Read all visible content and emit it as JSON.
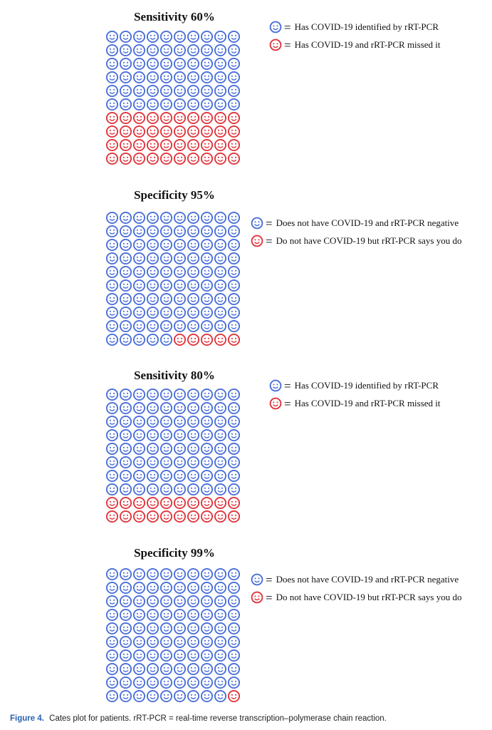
{
  "colors": {
    "blue": "#4a6fd8",
    "red": "#e0353c"
  },
  "chart_data": [
    {
      "type": "icon-array",
      "title": "Sensitivity 60%",
      "rows": 10,
      "cols": 10,
      "total": 100,
      "categories": [
        "Has COVID-19 identified by rRT-PCR",
        "Has COVID-19 and rRT-PCR missed it"
      ],
      "values": [
        60,
        40
      ],
      "icon_colors": [
        "blue",
        "red"
      ],
      "legend": [
        {
          "color": "blue",
          "symbol": "=",
          "text": "Has COVID-19 identified by rRT-PCR"
        },
        {
          "color": "red",
          "symbol": "=",
          "text": "Has COVID-19 and rRT-PCR missed it"
        }
      ]
    },
    {
      "type": "icon-array",
      "title": "Specificity 95%",
      "rows": 10,
      "cols": 10,
      "total": 100,
      "categories": [
        "Does not have COVID-19 and rRT-PCR negative",
        "Do not have COVID-19 but rRT-PCR says you do"
      ],
      "values": [
        95,
        5
      ],
      "icon_colors": [
        "blue",
        "red"
      ],
      "legend": [
        {
          "color": "blue",
          "symbol": "=",
          "text": "Does not have COVID-19 and rRT-PCR negative"
        },
        {
          "color": "red",
          "symbol": "=",
          "text": "Do not have COVID-19 but rRT-PCR says you do"
        }
      ]
    },
    {
      "type": "icon-array",
      "title": "Sensitivity 80%",
      "rows": 10,
      "cols": 10,
      "total": 100,
      "categories": [
        "Has COVID-19 identified by rRT-PCR",
        "Has COVID-19 and rRT-PCR missed it"
      ],
      "values": [
        80,
        20
      ],
      "icon_colors": [
        "blue",
        "red"
      ],
      "legend": [
        {
          "color": "blue",
          "symbol": "=",
          "text": "Has COVID-19 identified by rRT-PCR"
        },
        {
          "color": "red",
          "symbol": "=",
          "text": "Has COVID-19 and rRT-PCR missed it"
        }
      ]
    },
    {
      "type": "icon-array",
      "title": "Specificity 99%",
      "rows": 10,
      "cols": 10,
      "total": 100,
      "categories": [
        "Does not have COVID-19 and rRT-PCR negative",
        "Do not have COVID-19 but rRT-PCR says you do"
      ],
      "values": [
        99,
        1
      ],
      "icon_colors": [
        "blue",
        "red"
      ],
      "legend": [
        {
          "color": "blue",
          "symbol": "=",
          "text": "Does not have COVID-19 and rRT-PCR negative"
        },
        {
          "color": "red",
          "symbol": "=",
          "text": "Do not have COVID-19 but rRT-PCR says you do"
        }
      ]
    }
  ],
  "caption": {
    "label": "Figure 4.",
    "text": "Cates plot for patients. rRT-PCR = real-time reverse transcription–polymerase chain reaction."
  }
}
